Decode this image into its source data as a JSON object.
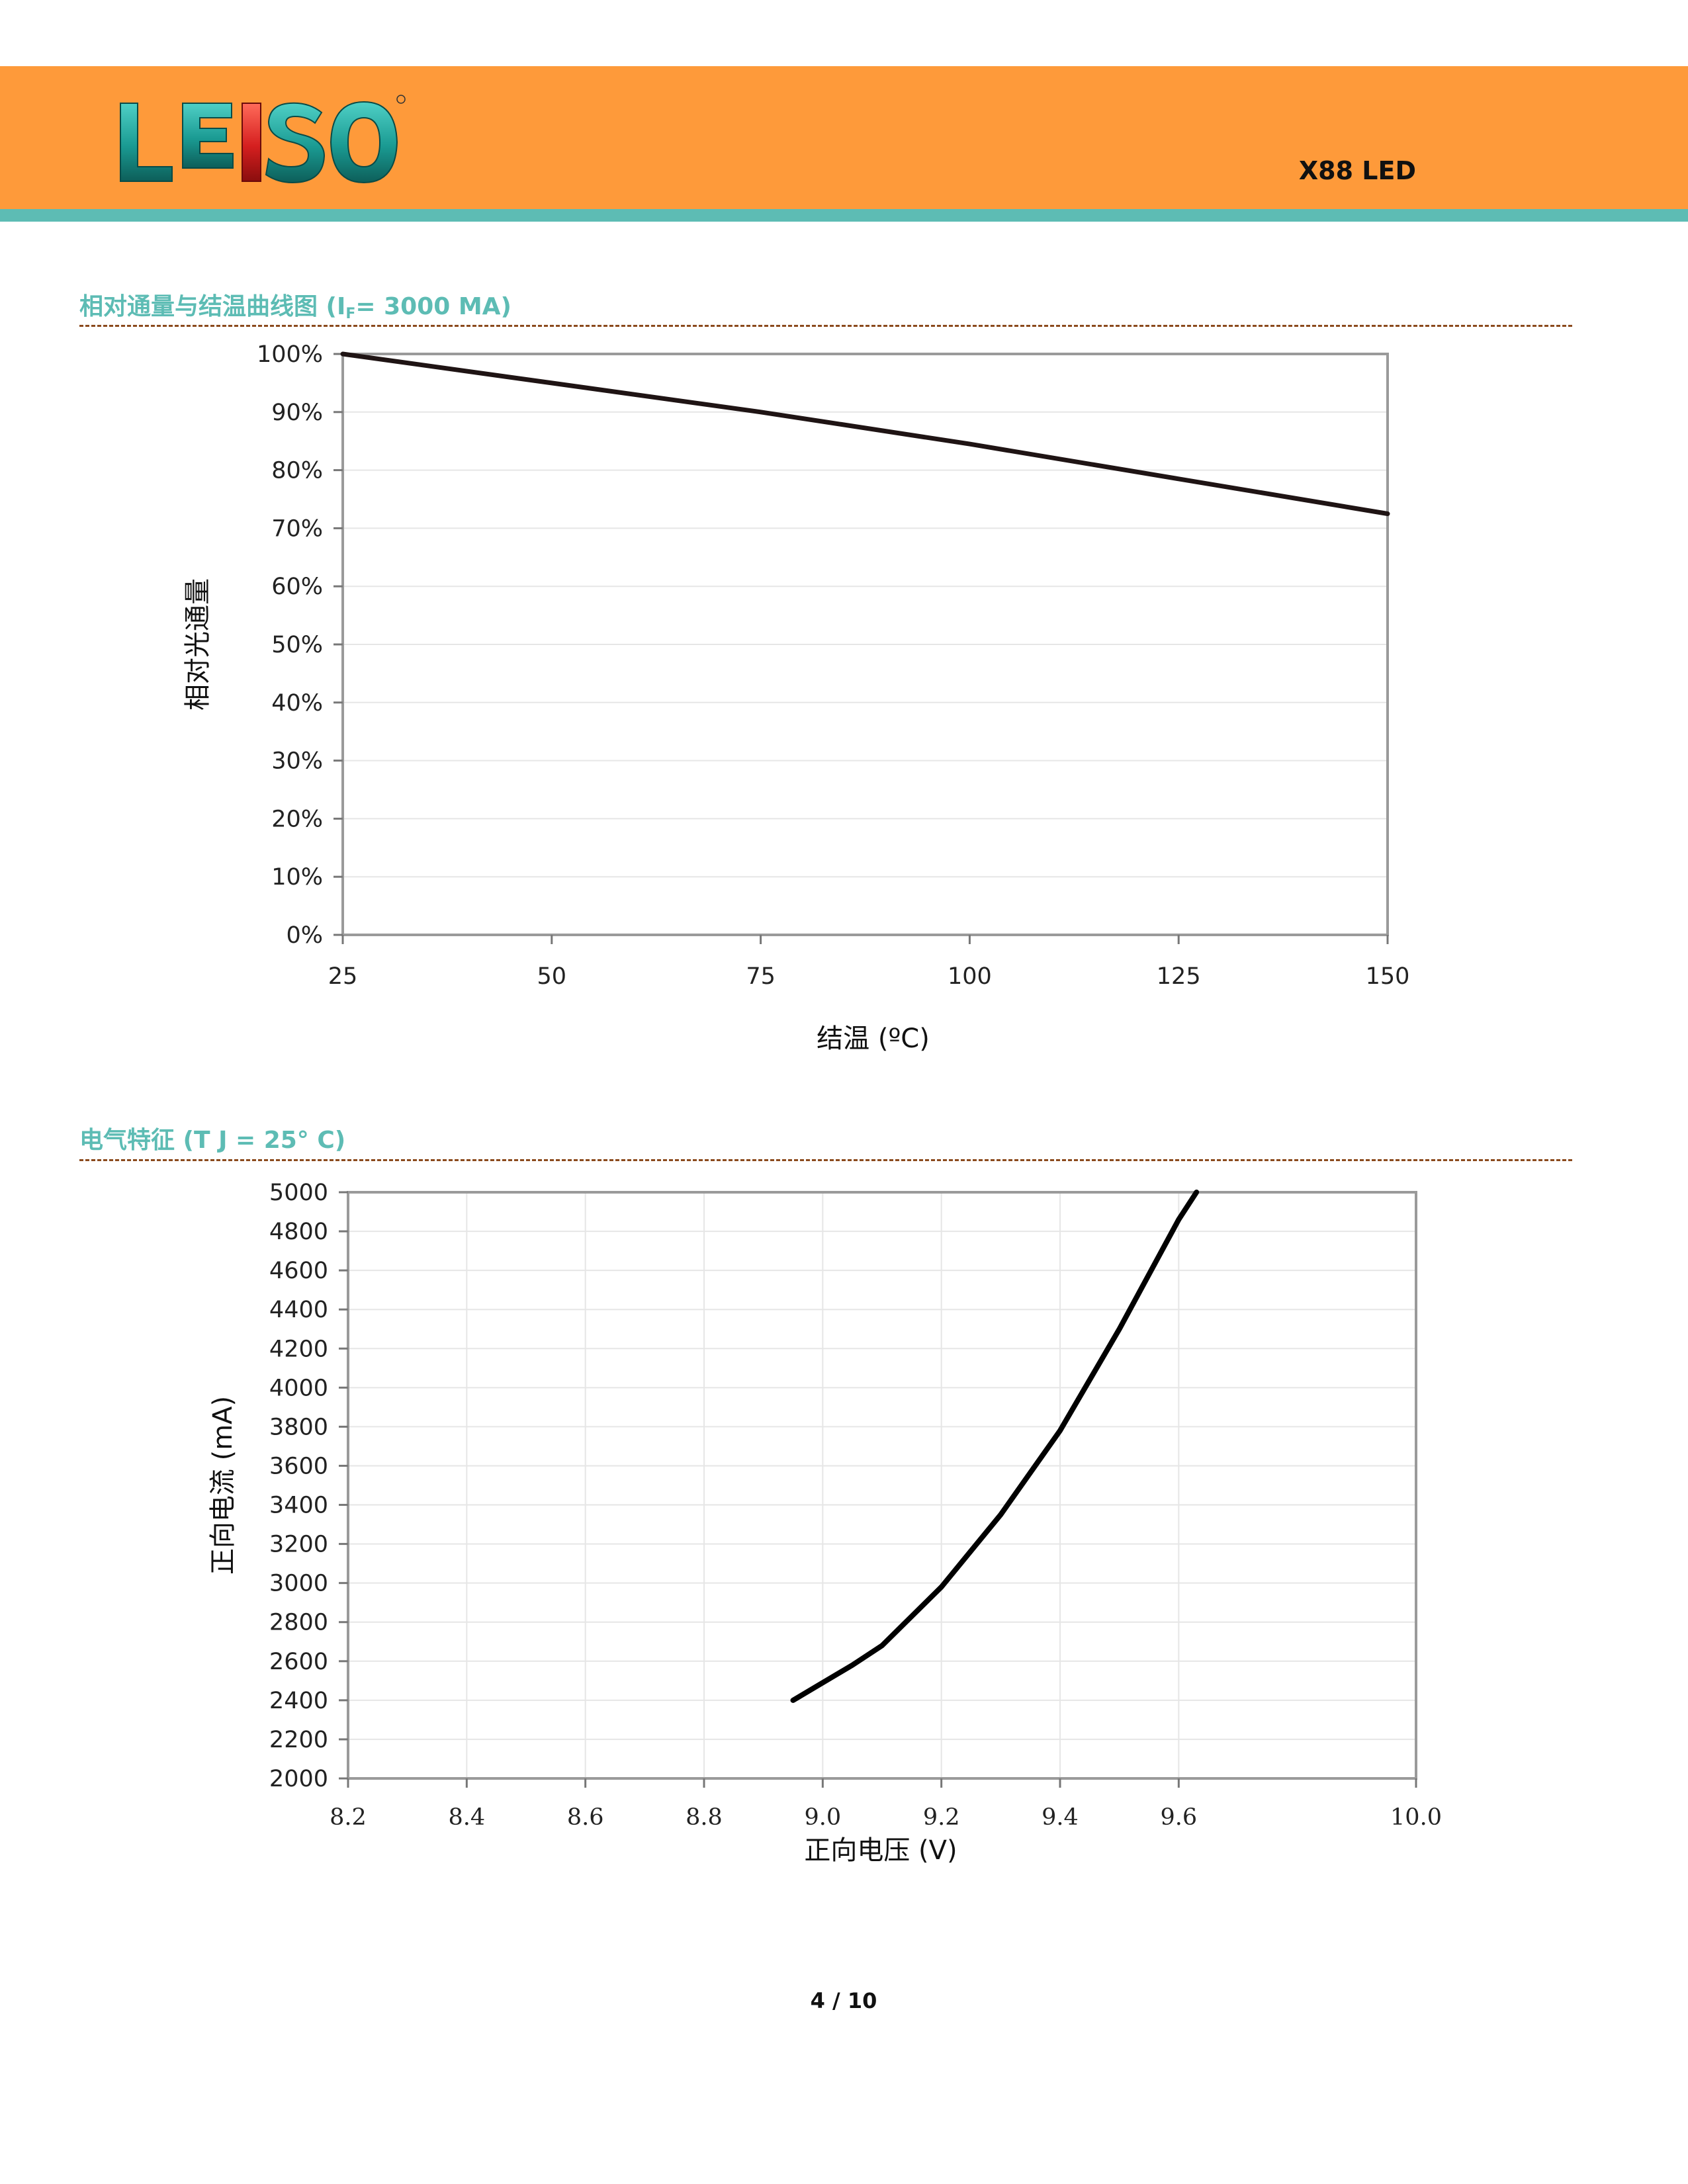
{
  "header": {
    "logo_text": "LEISO",
    "product": "X88 LED",
    "colors": {
      "band": "#fe9a3a",
      "stripe": "#5dbcb4",
      "title": "#5dbcb4"
    }
  },
  "section1": {
    "title_main": "相对通量与结温曲线图 (I",
    "title_sub": "F",
    "title_rest": "= 3000 MA)"
  },
  "section2": {
    "title": "电气特征 (T J = 25° C)"
  },
  "footer": {
    "page": "4 / 10"
  },
  "chart_data": [
    {
      "type": "line",
      "title": "",
      "xlabel": "结温 (ºC)",
      "ylabel": "相对光通量",
      "xlim": [
        25,
        150
      ],
      "ylim": [
        0,
        100
      ],
      "x_ticks": [
        25,
        50,
        75,
        100,
        125,
        150
      ],
      "y_ticks": [
        0,
        10,
        20,
        30,
        40,
        50,
        60,
        70,
        80,
        90,
        100
      ],
      "y_tick_labels": [
        "0%",
        "10%",
        "20%",
        "30%",
        "40%",
        "50%",
        "60%",
        "70%",
        "80%",
        "90%",
        "100%"
      ],
      "grid": "horizontal",
      "series": [
        {
          "x": [
            25,
            50,
            75,
            100,
            125,
            150
          ],
          "y": [
            100,
            95,
            90,
            84.5,
            78.5,
            72.5
          ]
        }
      ]
    },
    {
      "type": "line",
      "title": "",
      "xlabel": "正向电压 (V)",
      "ylabel": "正向电流 (mA)",
      "xlim": [
        8.2,
        10.0
      ],
      "ylim": [
        2000,
        5000
      ],
      "x_ticks": [
        8.2,
        8.4,
        8.6,
        8.8,
        9.0,
        9.2,
        9.4,
        9.6,
        10.0
      ],
      "x_tick_labels": [
        "8.2",
        "8.4",
        "8.6",
        "8.8",
        "9.0",
        "9.2",
        "9.4",
        "9.6",
        "10.0"
      ],
      "y_ticks": [
        2000,
        2200,
        2400,
        2600,
        2800,
        3000,
        3200,
        3400,
        3600,
        3800,
        4000,
        4200,
        4400,
        4600,
        4800,
        5000
      ],
      "grid": "both",
      "series": [
        {
          "x": [
            8.95,
            9.0,
            9.05,
            9.1,
            9.2,
            9.3,
            9.4,
            9.5,
            9.6,
            9.63
          ],
          "y": [
            2400,
            2490,
            2580,
            2680,
            2980,
            3350,
            3780,
            4300,
            4860,
            5000
          ]
        }
      ]
    }
  ]
}
